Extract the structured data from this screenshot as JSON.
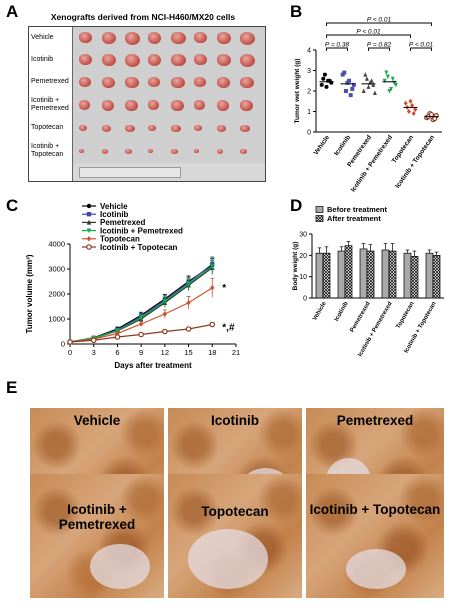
{
  "panels": {
    "A": "A",
    "B": "B",
    "C": "C",
    "D": "D",
    "E": "E"
  },
  "panelA": {
    "title": "Xenografts derived from NCI-H460/MX20 cells",
    "rows": [
      "Vehicle",
      "Icotinib",
      "Pemetrexed",
      "Icotinib + Pemetrexed",
      "Topotecan",
      "Icotinib + Topotecan"
    ]
  },
  "chart_data": [
    {
      "id": "B",
      "type": "scatter",
      "ylabel": "Tumor wet weight (g)",
      "ylim": [
        0,
        4
      ],
      "yticks": [
        0,
        1,
        2,
        3,
        4
      ],
      "categories": [
        "Vehicle",
        "Icotinib",
        "Pemetrexed",
        "Icotinib + Pemetrexed",
        "Topotecan",
        "Icotinib + Topotecan"
      ],
      "colors": [
        "#000000",
        "#4a4fa8",
        "#444444",
        "#1aa84a",
        "#d04a2c",
        "#8b3a1f"
      ],
      "points": [
        [
          2.3,
          2.8,
          2.5,
          2.4,
          2.6,
          2.2,
          2.5
        ],
        [
          2.8,
          2.0,
          2.5,
          2.1,
          2.9,
          2.4,
          1.8,
          2.3
        ],
        [
          2.0,
          2.6,
          2.4,
          2.3,
          2.8,
          2.2,
          2.5,
          1.9
        ],
        [
          2.5,
          2.7,
          2.1,
          2.4,
          2.9,
          2.0,
          2.6,
          2.3
        ],
        [
          1.4,
          1.0,
          1.3,
          1.1,
          1.2,
          1.5,
          0.9
        ],
        [
          0.7,
          0.9,
          0.6,
          0.8,
          0.75,
          0.85,
          0.65
        ]
      ],
      "means": [
        2.45,
        2.35,
        2.35,
        2.45,
        1.2,
        0.75
      ],
      "comparisons": [
        {
          "from": 0,
          "to": 1,
          "label": "P = 0.38"
        },
        {
          "from": 2,
          "to": 3,
          "label": "P = 0.82"
        },
        {
          "from": 4,
          "to": 5,
          "label": "P < 0.01"
        },
        {
          "from": 0,
          "to": 4,
          "label": "P < 0.01"
        },
        {
          "from": 0,
          "to": 5,
          "label": "P < 0.01"
        }
      ]
    },
    {
      "id": "C",
      "type": "line",
      "xlabel": "Days after treatment",
      "ylabel": "Tumor volume (mm³)",
      "xlim": [
        0,
        21
      ],
      "ylim": [
        0,
        4000
      ],
      "xticks": [
        0,
        3,
        6,
        9,
        12,
        15,
        18,
        21
      ],
      "yticks": [
        0,
        1000,
        2000,
        3000,
        4000
      ],
      "x": [
        0,
        3,
        6,
        9,
        12,
        15,
        18
      ],
      "series": [
        {
          "name": "Vehicle",
          "color": "#000000",
          "marker": "circle",
          "values": [
            80,
            250,
            600,
            1150,
            1800,
            2500,
            3150
          ],
          "err": [
            10,
            40,
            80,
            120,
            180,
            220,
            280
          ]
        },
        {
          "name": "Icotinib",
          "color": "#3b4aa8",
          "marker": "square",
          "values": [
            80,
            240,
            560,
            1100,
            1750,
            2450,
            3200
          ],
          "err": [
            10,
            40,
            80,
            120,
            180,
            220,
            280
          ]
        },
        {
          "name": "Pemetrexed",
          "color": "#333333",
          "marker": "triangle",
          "values": [
            80,
            230,
            520,
            1000,
            1650,
            2350,
            3050
          ],
          "err": [
            10,
            40,
            80,
            120,
            180,
            220,
            280
          ]
        },
        {
          "name": "Icotinib + Pemetrexed",
          "color": "#1aa84a",
          "marker": "triangle-down",
          "values": [
            80,
            240,
            530,
            1050,
            1700,
            2400,
            3100
          ],
          "err": [
            10,
            40,
            80,
            120,
            180,
            220,
            300
          ]
        },
        {
          "name": "Topotecan",
          "color": "#c9542e",
          "marker": "diamond",
          "values": [
            80,
            200,
            420,
            800,
            1200,
            1650,
            2250
          ],
          "err": [
            10,
            30,
            60,
            100,
            160,
            250,
            380
          ]
        },
        {
          "name": "Icotinib + Topotecan",
          "color": "#8b3a1f",
          "marker": "circle-open",
          "values": [
            80,
            150,
            280,
            380,
            500,
            600,
            780
          ],
          "err": [
            10,
            20,
            30,
            40,
            50,
            60,
            70
          ]
        }
      ],
      "annotations": [
        "*",
        "*,#"
      ]
    },
    {
      "id": "D",
      "type": "bar",
      "ylabel": "Body weight (g)",
      "ylim": [
        0,
        30
      ],
      "yticks": [
        0,
        10,
        20,
        30
      ],
      "categories": [
        "Vehicle",
        "Icotinib",
        "Pemetrexed",
        "Icotinib + Pemetrexed",
        "Topotecan",
        "Icotinib + Topotecan"
      ],
      "series": [
        {
          "name": "Before treatment",
          "values": [
            21,
            22,
            23,
            22.5,
            21,
            21
          ],
          "err": [
            2.5,
            2.0,
            2.5,
            3.0,
            1.5,
            1.5
          ]
        },
        {
          "name": "After treatment",
          "values": [
            21,
            24.5,
            22,
            22,
            19.5,
            20
          ],
          "err": [
            3.0,
            2.0,
            3.0,
            3.5,
            2.5,
            1.5
          ]
        }
      ]
    }
  ],
  "panelE": {
    "labels": [
      "Vehicle",
      "Icotinib",
      "Pemetrexed",
      "Icotinib + Pemetrexed",
      "Topotecan",
      "Icotinib + Topotecan"
    ]
  }
}
